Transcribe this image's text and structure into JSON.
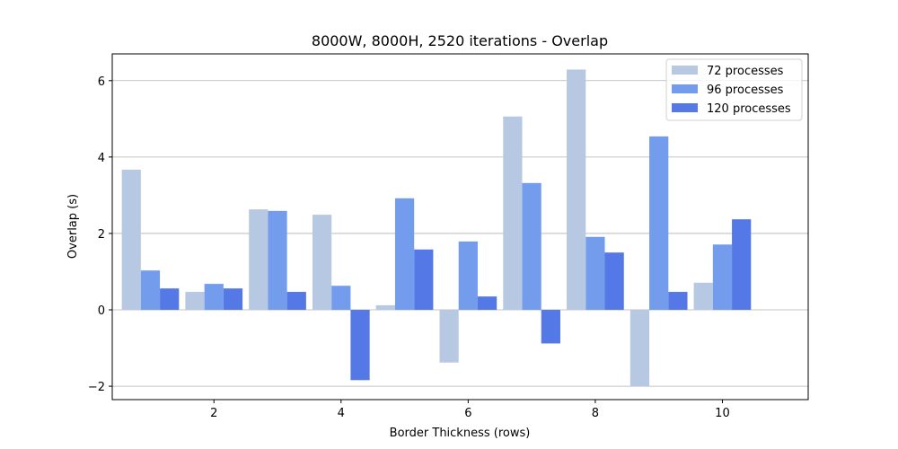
{
  "chart_data": {
    "type": "bar",
    "title": "8000W, 8000H, 2520 iterations - Overlap",
    "xlabel": "Border Thickness (rows)",
    "ylabel": "Overlap (s)",
    "x": [
      1,
      2,
      3,
      4,
      5,
      6,
      7,
      8,
      9,
      10
    ],
    "xticks": [
      2,
      4,
      6,
      8,
      10
    ],
    "xtick_labels": [
      "2",
      "4",
      "6",
      "8",
      "10"
    ],
    "xlim": [
      0.4,
      11.35
    ],
    "yticks": [
      -2,
      0,
      2,
      4,
      6
    ],
    "ytick_labels": [
      "−2",
      "0",
      "2",
      "4",
      "6"
    ],
    "ylim": [
      -2.35,
      6.7
    ],
    "grid": "y",
    "legend_position": "top-right",
    "series": [
      {
        "name": "72 processes",
        "color": "#b7c9e2",
        "values": [
          3.67,
          0.47,
          2.63,
          2.49,
          0.12,
          -1.38,
          5.06,
          6.29,
          -2.0,
          0.71
        ]
      },
      {
        "name": "96 processes",
        "color": "#739ced",
        "values": [
          1.03,
          0.68,
          2.59,
          0.63,
          2.92,
          1.79,
          3.32,
          1.91,
          4.54,
          1.71
        ]
      },
      {
        "name": "120 processes",
        "color": "#5479e7",
        "values": [
          0.56,
          0.56,
          0.47,
          -1.84,
          1.58,
          0.35,
          -0.88,
          1.5,
          0.47,
          2.37
        ]
      }
    ]
  }
}
